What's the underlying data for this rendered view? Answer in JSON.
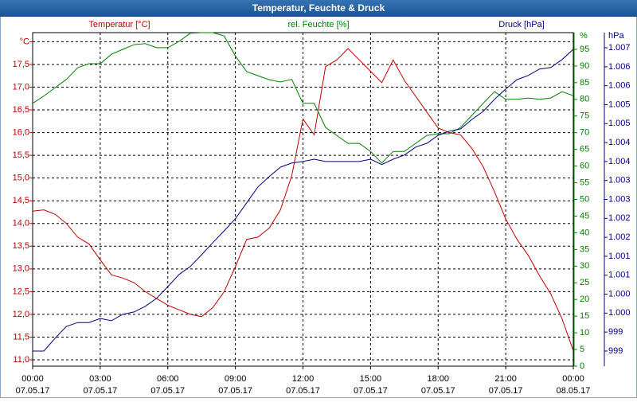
{
  "chart_data": {
    "type": "line",
    "title": "Temperatur, Feuchte & Druck",
    "y_unit": "°C",
    "y2_unit": "%",
    "y3_unit": "hPa",
    "x": [
      0,
      0.5,
      1,
      1.5,
      2,
      2.5,
      3,
      3.5,
      4,
      4.5,
      5,
      5.5,
      6,
      6.5,
      7,
      7.5,
      8,
      8.5,
      9,
      9.5,
      10,
      10.5,
      11,
      11.5,
      12,
      12.5,
      13,
      13.5,
      14,
      14.5,
      15,
      15.5,
      16,
      16.5,
      17,
      17.5,
      18,
      18.5,
      19,
      19.5,
      20,
      20.5,
      21,
      21.5,
      22,
      22.5,
      23,
      23.5,
      24
    ],
    "xlim": [
      0,
      24
    ],
    "xticks": [
      {
        "value": 0,
        "label": "00:00"
      },
      {
        "value": 3,
        "label": "03:00"
      },
      {
        "value": 6,
        "label": "06:00"
      },
      {
        "value": 9,
        "label": "09:00"
      },
      {
        "value": 12,
        "label": "12:00"
      },
      {
        "value": 15,
        "label": "15:00"
      },
      {
        "value": 18,
        "label": "18:00"
      },
      {
        "value": 21,
        "label": "21:00"
      },
      {
        "value": 24,
        "label": "00:00"
      }
    ],
    "xtick_dates": [
      "07.05.17",
      "07.05.17",
      "07.05.17",
      "07.05.17",
      "07.05.17",
      "07.05.17",
      "07.05.17",
      "07.05.17",
      "08.05.17"
    ],
    "ylim": [
      10.86,
      18.2
    ],
    "yticks": [
      {
        "value": 11,
        "label": "11,0"
      },
      {
        "value": 11.5,
        "label": "11,5"
      },
      {
        "value": 12,
        "label": "12,0"
      },
      {
        "value": 12.5,
        "label": "12,5"
      },
      {
        "value": 13,
        "label": "13,0"
      },
      {
        "value": 13.5,
        "label": "13,5"
      },
      {
        "value": 14,
        "label": "14,0"
      },
      {
        "value": 14.5,
        "label": "14,5"
      },
      {
        "value": 15,
        "label": "15,0"
      },
      {
        "value": 15.5,
        "label": "15,5"
      },
      {
        "value": 16,
        "label": "16,0"
      },
      {
        "value": 16.5,
        "label": "16,5"
      },
      {
        "value": 17,
        "label": "17,0"
      },
      {
        "value": 17.5,
        "label": "17,5"
      },
      {
        "value": 18,
        "label": "°C"
      }
    ],
    "y2lim": [
      0,
      100
    ],
    "y2ticks": [
      0,
      5,
      10,
      15,
      20,
      25,
      30,
      35,
      40,
      45,
      50,
      55,
      60,
      65,
      70,
      75,
      80,
      85,
      90,
      95
    ],
    "y3lim": [
      998.35,
      1007.15
    ],
    "y3ticks": [
      {
        "value": 998.75,
        "label": "999"
      },
      {
        "value": 999.25,
        "label": "999"
      },
      {
        "value": 999.75,
        "label": "1.000"
      },
      {
        "value": 1000.25,
        "label": "1.000"
      },
      {
        "value": 1000.75,
        "label": "1.001"
      },
      {
        "value": 1001.25,
        "label": "1.001"
      },
      {
        "value": 1001.75,
        "label": "1.002"
      },
      {
        "value": 1002.25,
        "label": "1.002"
      },
      {
        "value": 1002.75,
        "label": "1.003"
      },
      {
        "value": 1003.25,
        "label": "1.003"
      },
      {
        "value": 1003.75,
        "label": "1.004"
      },
      {
        "value": 1004.25,
        "label": "1.004"
      },
      {
        "value": 1004.75,
        "label": "1.005"
      },
      {
        "value": 1005.25,
        "label": "1.005"
      },
      {
        "value": 1005.75,
        "label": "1.006"
      },
      {
        "value": 1006.25,
        "label": "1.006"
      },
      {
        "value": 1006.75,
        "label": "1.007"
      }
    ],
    "grid": true,
    "series": [
      {
        "name": "Temperatur [°C]",
        "color": "#c00000",
        "axis": "y",
        "values": [
          14.27,
          14.3,
          14.2,
          14.0,
          13.7,
          13.55,
          13.2,
          12.87,
          12.8,
          12.7,
          12.5,
          12.35,
          12.2,
          12.1,
          12.0,
          11.95,
          12.15,
          12.5,
          13.05,
          13.65,
          13.7,
          13.9,
          14.3,
          15.05,
          16.3,
          15.95,
          17.45,
          17.6,
          17.85,
          17.6,
          17.35,
          17.1,
          17.6,
          17.15,
          16.8,
          16.45,
          16.1,
          16.0,
          15.95,
          15.65,
          15.25,
          14.7,
          14.1,
          13.65,
          13.3,
          12.85,
          12.45,
          11.9,
          11.2
        ]
      },
      {
        "name": "rel. Feuchte [%]",
        "color": "#008000",
        "axis": "y2",
        "values": [
          78.8,
          81,
          83.5,
          86,
          89.5,
          90.7,
          90.7,
          93.5,
          95,
          96.4,
          96.7,
          95.5,
          95.5,
          97.4,
          99.8,
          100,
          100,
          99,
          93,
          88.3,
          87.1,
          85.9,
          85.2,
          86,
          78.8,
          78.8,
          71.6,
          69.2,
          66.8,
          66.8,
          64.4,
          60.9,
          64.4,
          64.4,
          66.8,
          69.2,
          69.7,
          69.7,
          71.6,
          75.2,
          78.8,
          82.3,
          80,
          80,
          80.4,
          80,
          80.4,
          82.3,
          81.1
        ]
      },
      {
        "name": "Druck [hPa]",
        "color": "#000080",
        "axis": "y3",
        "values": [
          998.75,
          998.75,
          999.09,
          999.4,
          999.5,
          999.5,
          999.61,
          999.55,
          999.72,
          999.78,
          999.93,
          1000.14,
          1000.45,
          1000.77,
          1000.98,
          1001.29,
          1001.61,
          1001.92,
          1002.24,
          1002.66,
          1003.08,
          1003.35,
          1003.6,
          1003.71,
          1003.75,
          1003.81,
          1003.75,
          1003.75,
          1003.75,
          1003.75,
          1003.81,
          1003.67,
          1003.81,
          1003.92,
          1004.13,
          1004.23,
          1004.44,
          1004.55,
          1004.61,
          1004.86,
          1005.07,
          1005.39,
          1005.66,
          1005.91,
          1006.02,
          1006.19,
          1006.23,
          1006.44,
          1006.71
        ]
      }
    ]
  }
}
